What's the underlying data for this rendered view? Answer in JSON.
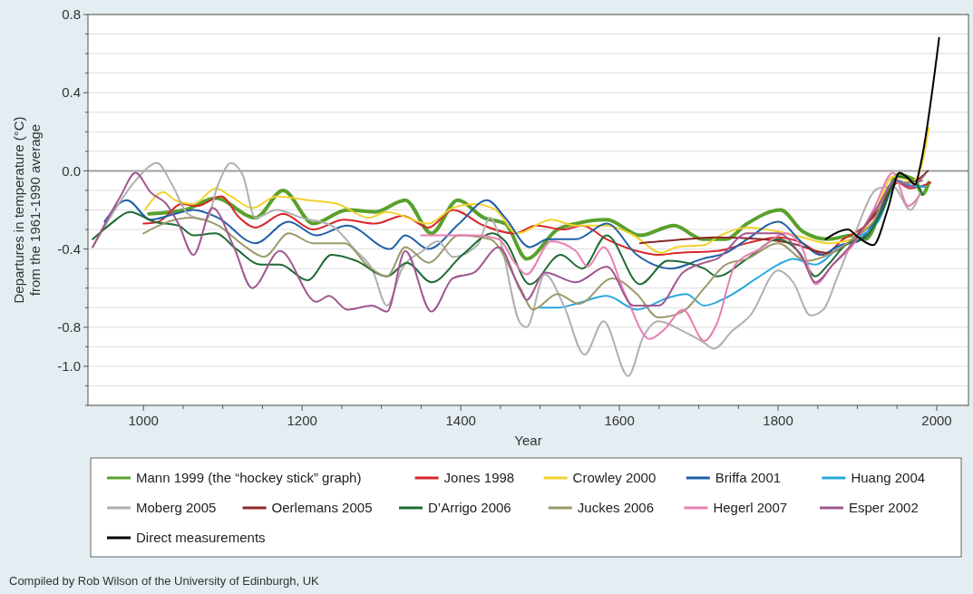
{
  "chart_data": {
    "type": "line",
    "xlabel": "Year",
    "ylabel": "Departures in temperature (°C) from the 1961-1990 average",
    "annotations": [
      "Compiled by Rob Wilson of the University of Edinburgh, UK"
    ],
    "xlim": [
      930,
      2040
    ],
    "ylim": [
      -1.2,
      0.8
    ],
    "xticks": [
      {
        "value": 1000,
        "label": "1000"
      },
      {
        "value": 1050,
        "label": null
      },
      {
        "value": 1100,
        "label": null
      },
      {
        "value": 1150,
        "label": null
      },
      {
        "value": 1200,
        "label": "1200"
      },
      {
        "value": 1250,
        "label": null
      },
      {
        "value": 1300,
        "label": null
      },
      {
        "value": 1350,
        "label": null
      },
      {
        "value": 1400,
        "label": "1400"
      },
      {
        "value": 1450,
        "label": null
      },
      {
        "value": 1500,
        "label": null
      },
      {
        "value": 1550,
        "label": null
      },
      {
        "value": 1600,
        "label": "1600"
      },
      {
        "value": 1650,
        "label": null
      },
      {
        "value": 1700,
        "label": null
      },
      {
        "value": 1750,
        "label": null
      },
      {
        "value": 1800,
        "label": "1800"
      },
      {
        "value": 1850,
        "label": null
      },
      {
        "value": 1900,
        "label": null
      },
      {
        "value": 1950,
        "label": null
      },
      {
        "value": 2000,
        "label": "2000"
      }
    ],
    "yticks": [
      {
        "value": 0.8,
        "label": "0.8"
      },
      {
        "value": 0.7,
        "label": null
      },
      {
        "value": 0.6,
        "label": null
      },
      {
        "value": 0.5,
        "label": null
      },
      {
        "value": 0.4,
        "label": "0.4"
      },
      {
        "value": 0.3,
        "label": null
      },
      {
        "value": 0.2,
        "label": null
      },
      {
        "value": 0.1,
        "label": null
      },
      {
        "value": 0,
        "label": "0.0"
      },
      {
        "value": -0.1,
        "label": null
      },
      {
        "value": -0.2,
        "label": null
      },
      {
        "value": -0.3,
        "label": null
      },
      {
        "value": -0.4,
        "label": "-0.4"
      },
      {
        "value": -0.5,
        "label": null
      },
      {
        "value": -0.6,
        "label": null
      },
      {
        "value": -0.7,
        "label": null
      },
      {
        "value": -0.8,
        "label": "-0.8"
      },
      {
        "value": -0.9,
        "label": null
      },
      {
        "value": -1.0,
        "label": "-1.0"
      },
      {
        "value": -1.1,
        "label": null
      },
      {
        "value": -1.2,
        "label": null
      }
    ],
    "grid": "y",
    "legend": "bottom",
    "line_style": "solid",
    "ref_lines": [
      {
        "axis": "y",
        "value": 0,
        "color": "#a0a0a0"
      }
    ],
    "series": [
      {
        "name": "Mann 1999 (the “hockey stick” graph)",
        "color": "#5aa02c",
        "x": [
          1007,
          1052,
          1091,
          1141,
          1176,
          1214,
          1257,
          1292,
          1330,
          1363,
          1396,
          1429,
          1456,
          1483,
          1522,
          1545,
          1584,
          1626,
          1669,
          1705,
          1734,
          1761,
          1803,
          1831,
          1863,
          1894,
          1910,
          1932,
          1951,
          1973,
          1982,
          1990
        ],
        "values": [
          -0.22,
          -0.2,
          -0.14,
          -0.24,
          -0.1,
          -0.27,
          -0.2,
          -0.21,
          -0.15,
          -0.32,
          -0.15,
          -0.24,
          -0.27,
          -0.45,
          -0.3,
          -0.27,
          -0.25,
          -0.33,
          -0.28,
          -0.35,
          -0.35,
          -0.27,
          -0.2,
          -0.31,
          -0.35,
          -0.33,
          -0.35,
          -0.18,
          -0.02,
          -0.05,
          -0.12,
          -0.06
        ]
      },
      {
        "name": "Jones 1998",
        "color": "#d7262b",
        "x": [
          1000,
          1019,
          1048,
          1067,
          1098,
          1121,
          1141,
          1176,
          1214,
          1253,
          1292,
          1327,
          1359,
          1390,
          1429,
          1468,
          1495,
          1530,
          1553,
          1584,
          1622,
          1649,
          1672,
          1723,
          1761,
          1800,
          1831,
          1857,
          1882,
          1907,
          1932,
          1951,
          1966,
          1979,
          1992
        ],
        "values": [
          -0.27,
          -0.26,
          -0.17,
          -0.18,
          -0.13,
          -0.24,
          -0.29,
          -0.22,
          -0.3,
          -0.25,
          -0.27,
          -0.23,
          -0.29,
          -0.2,
          -0.28,
          -0.32,
          -0.28,
          -0.3,
          -0.28,
          -0.35,
          -0.41,
          -0.43,
          -0.42,
          -0.41,
          -0.37,
          -0.34,
          -0.37,
          -0.43,
          -0.35,
          -0.29,
          -0.18,
          -0.06,
          -0.09,
          -0.08,
          -0.06
        ]
      },
      {
        "name": "Crowley 2000",
        "color": "#f2d22e",
        "x": [
          1002,
          1025,
          1040,
          1063,
          1091,
          1110,
          1137,
          1168,
          1207,
          1245,
          1284,
          1307,
          1359,
          1390,
          1417,
          1444,
          1471,
          1514,
          1545,
          1584,
          1618,
          1653,
          1672,
          1707,
          1723,
          1761,
          1800,
          1831,
          1863,
          1894,
          1920,
          1945,
          1970,
          1979,
          1990
        ],
        "values": [
          -0.2,
          -0.11,
          -0.15,
          -0.17,
          -0.09,
          -0.13,
          -0.19,
          -0.13,
          -0.15,
          -0.17,
          -0.24,
          -0.21,
          -0.27,
          -0.19,
          -0.17,
          -0.2,
          -0.32,
          -0.25,
          -0.28,
          -0.28,
          -0.33,
          -0.42,
          -0.39,
          -0.38,
          -0.34,
          -0.29,
          -0.31,
          -0.34,
          -0.37,
          -0.35,
          -0.23,
          -0.03,
          -0.05,
          0.0,
          0.22
        ]
      },
      {
        "name": "Briffa 2001",
        "color": "#1f5fa8",
        "x": [
          951,
          979,
          1009,
          1040,
          1063,
          1094,
          1141,
          1183,
          1218,
          1257,
          1311,
          1330,
          1359,
          1398,
          1433,
          1456,
          1487,
          1510,
          1545,
          1584,
          1622,
          1665,
          1705,
          1734,
          1761,
          1800,
          1831,
          1853,
          1879,
          1901,
          1926,
          1951,
          1970,
          1985
        ],
        "values": [
          -0.26,
          -0.15,
          -0.25,
          -0.22,
          -0.2,
          -0.24,
          -0.37,
          -0.26,
          -0.33,
          -0.28,
          -0.4,
          -0.33,
          -0.4,
          -0.27,
          -0.15,
          -0.24,
          -0.39,
          -0.35,
          -0.35,
          -0.27,
          -0.43,
          -0.5,
          -0.45,
          -0.42,
          -0.35,
          -0.26,
          -0.37,
          -0.43,
          -0.38,
          -0.36,
          -0.23,
          -0.05,
          -0.08,
          -0.08
        ]
      },
      {
        "name": "Huang 2004",
        "color": "#2aa8e0",
        "x": [
          1500,
          1522,
          1545,
          1584,
          1622,
          1661,
          1684,
          1707,
          1734,
          1773,
          1800,
          1819,
          1847,
          1875,
          1901,
          1926,
          1951,
          1973,
          1985
        ],
        "values": [
          -0.7,
          -0.7,
          -0.68,
          -0.64,
          -0.71,
          -0.65,
          -0.63,
          -0.69,
          -0.65,
          -0.55,
          -0.48,
          -0.45,
          -0.48,
          -0.4,
          -0.34,
          -0.26,
          -0.05,
          -0.08,
          -0.08
        ]
      },
      {
        "name": "Moberg 2005",
        "color": "#b0b0b0",
        "x": [
          936,
          967,
          990,
          1017,
          1036,
          1056,
          1079,
          1094,
          1110,
          1125,
          1141,
          1168,
          1199,
          1237,
          1268,
          1288,
          1307,
          1326,
          1352,
          1371,
          1390,
          1421,
          1437,
          1448,
          1475,
          1483,
          1506,
          1530,
          1556,
          1580,
          1611,
          1630,
          1649,
          1680,
          1707,
          1719,
          1742,
          1765,
          1800,
          1819,
          1841,
          1857,
          1875,
          1894,
          1926,
          1945,
          1967,
          1979
        ],
        "values": [
          -0.39,
          -0.18,
          -0.05,
          0.04,
          -0.07,
          -0.22,
          -0.25,
          -0.07,
          0.04,
          -0.02,
          -0.24,
          -0.2,
          -0.24,
          -0.28,
          -0.41,
          -0.5,
          -0.69,
          -0.5,
          -0.41,
          -0.36,
          -0.44,
          -0.38,
          -0.24,
          -0.33,
          -0.78,
          -0.8,
          -0.53,
          -0.69,
          -0.94,
          -0.77,
          -1.05,
          -0.85,
          -0.77,
          -0.82,
          -0.88,
          -0.91,
          -0.82,
          -0.74,
          -0.51,
          -0.57,
          -0.74,
          -0.71,
          -0.54,
          -0.35,
          -0.09,
          -0.08,
          -0.2,
          -0.11
        ]
      },
      {
        "name": "Oerlemans 2005",
        "color": "#8b2a2a",
        "x": [
          1626,
          1684,
          1723,
          1780,
          1816,
          1863,
          1894,
          1926,
          1951,
          1966,
          1989
        ],
        "values": [
          -0.37,
          -0.35,
          -0.34,
          -0.35,
          -0.37,
          -0.42,
          -0.35,
          -0.2,
          -0.06,
          -0.06,
          0.0
        ]
      },
      {
        "name": "D’Arrigo 2006",
        "color": "#1e6b33",
        "x": [
          936,
          959,
          983,
          1013,
          1044,
          1063,
          1091,
          1117,
          1148,
          1172,
          1207,
          1237,
          1268,
          1307,
          1332,
          1363,
          1402,
          1440,
          1456,
          1487,
          1526,
          1553,
          1584,
          1626,
          1661,
          1707,
          1723,
          1761,
          1800,
          1827,
          1847,
          1863,
          1885,
          1910,
          1932,
          1951,
          1973,
          1982
        ],
        "values": [
          -0.35,
          -0.27,
          -0.21,
          -0.26,
          -0.28,
          -0.33,
          -0.32,
          -0.4,
          -0.48,
          -0.48,
          -0.56,
          -0.43,
          -0.46,
          -0.54,
          -0.47,
          -0.57,
          -0.43,
          -0.32,
          -0.36,
          -0.58,
          -0.43,
          -0.5,
          -0.33,
          -0.58,
          -0.46,
          -0.5,
          -0.54,
          -0.45,
          -0.35,
          -0.42,
          -0.54,
          -0.48,
          -0.38,
          -0.34,
          -0.2,
          -0.03,
          -0.06,
          -0.12
        ]
      },
      {
        "name": "Juckes 2006",
        "color": "#9c9a6a",
        "x": [
          1000,
          1025,
          1059,
          1094,
          1129,
          1152,
          1183,
          1214,
          1253,
          1284,
          1307,
          1330,
          1359,
          1398,
          1437,
          1475,
          1491,
          1522,
          1549,
          1591,
          1622,
          1649,
          1680,
          1707,
          1734,
          1761,
          1800,
          1835,
          1863,
          1894,
          1920,
          1945,
          1970,
          1982
        ],
        "values": [
          -0.32,
          -0.27,
          -0.24,
          -0.28,
          -0.39,
          -0.44,
          -0.32,
          -0.37,
          -0.37,
          -0.49,
          -0.54,
          -0.39,
          -0.47,
          -0.33,
          -0.35,
          -0.6,
          -0.71,
          -0.63,
          -0.68,
          -0.55,
          -0.63,
          -0.75,
          -0.72,
          -0.6,
          -0.48,
          -0.45,
          -0.37,
          -0.46,
          -0.43,
          -0.35,
          -0.26,
          -0.06,
          -0.06,
          -0.05
        ]
      },
      {
        "name": "Hegerl 2007",
        "color": "#e87fb4",
        "x": [
          1350,
          1417,
          1448,
          1468,
          1483,
          1514,
          1545,
          1560,
          1580,
          1607,
          1638,
          1657,
          1680,
          1707,
          1723,
          1746,
          1777,
          1809,
          1831,
          1847,
          1869,
          1894,
          1920,
          1945,
          1964,
          1979
        ],
        "values": [
          -0.33,
          -0.33,
          -0.35,
          -0.47,
          -0.53,
          -0.36,
          -0.41,
          -0.49,
          -0.39,
          -0.63,
          -0.86,
          -0.81,
          -0.71,
          -0.87,
          -0.78,
          -0.48,
          -0.4,
          -0.32,
          -0.4,
          -0.58,
          -0.48,
          -0.38,
          -0.2,
          -0.01,
          -0.18,
          -0.12
        ]
      },
      {
        "name": "Esper 2002",
        "color": "#a0588f",
        "x": [
          936,
          971,
          990,
          1009,
          1029,
          1044,
          1063,
          1087,
          1114,
          1137,
          1172,
          1218,
          1234,
          1257,
          1288,
          1307,
          1330,
          1363,
          1390,
          1417,
          1448,
          1475,
          1483,
          1506,
          1545,
          1584,
          1618,
          1649,
          1680,
          1707,
          1723,
          1761,
          1800,
          1831,
          1847,
          1869,
          1894,
          1926,
          1948,
          1966,
          1985
        ],
        "values": [
          -0.39,
          -0.13,
          -0.01,
          -0.11,
          -0.17,
          -0.27,
          -0.43,
          -0.19,
          -0.39,
          -0.6,
          -0.41,
          -0.67,
          -0.64,
          -0.71,
          -0.69,
          -0.72,
          -0.41,
          -0.72,
          -0.55,
          -0.52,
          -0.39,
          -0.61,
          -0.66,
          -0.52,
          -0.57,
          -0.49,
          -0.69,
          -0.69,
          -0.52,
          -0.47,
          -0.45,
          -0.32,
          -0.32,
          -0.45,
          -0.57,
          -0.48,
          -0.37,
          -0.18,
          -0.05,
          -0.08,
          -0.02
        ]
      },
      {
        "name": "Direct measurements",
        "color": "#000000",
        "x": [
          1860,
          1872,
          1888,
          1901,
          1920,
          1938,
          1953,
          1962,
          1973,
          1979,
          2003
        ],
        "values": [
          -0.35,
          -0.32,
          -0.3,
          -0.34,
          -0.38,
          -0.2,
          -0.01,
          -0.03,
          -0.07,
          0.02,
          0.68
        ]
      }
    ]
  }
}
